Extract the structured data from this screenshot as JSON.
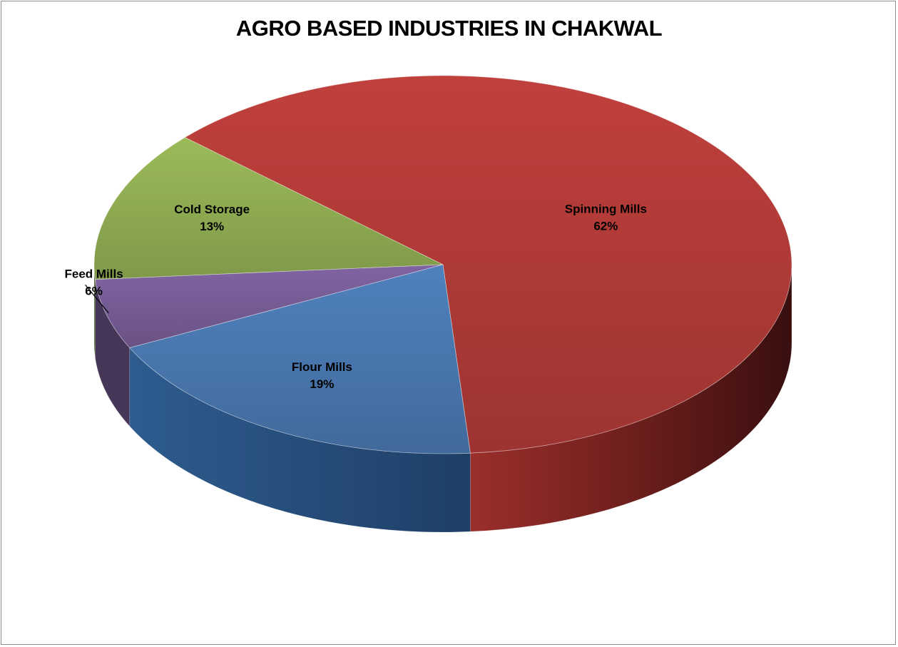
{
  "chart_data": {
    "type": "pie",
    "title": "AGRO BASED INDUSTRIES IN CHAKWAL",
    "categories": [
      "Spinning Mills",
      "Cold Storage",
      "Feed Mills",
      "Flour Mills"
    ],
    "values": [
      62,
      13,
      6,
      19
    ],
    "labels": [
      {
        "name": "Spinning Mills",
        "percent": "62%"
      },
      {
        "name": "Cold Storage",
        "percent": "13%"
      },
      {
        "name": "Feed Mills",
        "percent": "6%"
      },
      {
        "name": "Flour Mills",
        "percent": "19%"
      }
    ],
    "colors": [
      "#c0403c",
      "#9bbb59",
      "#8064a2",
      "#4f81bd"
    ],
    "style": "3d",
    "legend": "none"
  }
}
